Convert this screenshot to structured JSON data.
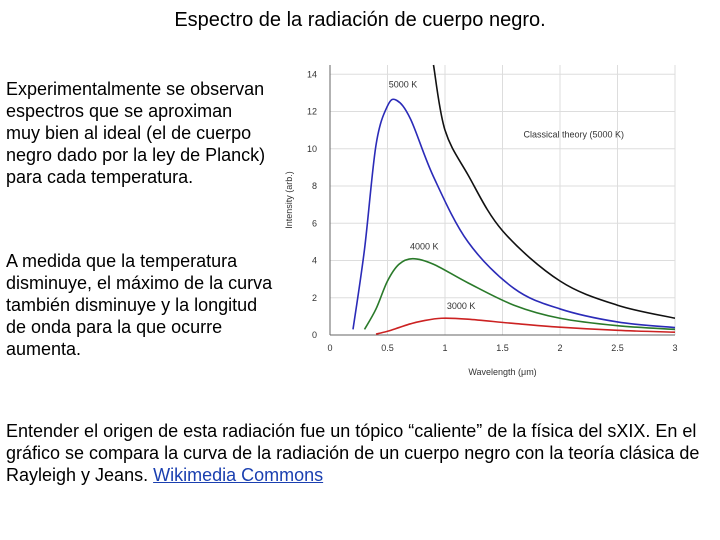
{
  "title": "Espectro de la radiación de cuerpo negro.",
  "paragraph_1": "Experimentalmente se observan espectros que se aproximan muy bien al ideal (el de cuerpo negro dado por la ley de Planck) para cada temperatura.",
  "paragraph_2": "A medida que la temperatura disminuye, el máximo de la curva también disminuye y la longitud de onda para la que ocurre aumenta.",
  "paragraph_3": "Entender el origen de esta radiación fue un tópico “caliente” de la física del sXIX. En el gráfico se compara la curva de la radiación de un cuerpo negro con la teoría clásica de Rayleigh y Jeans.",
  "link_text": "Wikimedia Commons",
  "chart_data": {
    "type": "line",
    "xlabel": "Wavelength (μm)",
    "ylabel": "Intensity (arb.)",
    "xlim": [
      0,
      3
    ],
    "ylim": [
      0,
      14.5
    ],
    "xticks": [
      "0",
      "0.5",
      "1",
      "1.5",
      "2",
      "2.5",
      "3"
    ],
    "yticks": [
      "0",
      "2",
      "4",
      "6",
      "8",
      "10",
      "12",
      "14"
    ],
    "grid": true,
    "series": [
      {
        "name": "5000 K",
        "color": "#2b2bb8",
        "peak_x": 0.58,
        "peak_y": 12.6,
        "x": [
          0.2,
          0.3,
          0.4,
          0.5,
          0.58,
          0.7,
          0.9,
          1.2,
          1.6,
          2.0,
          2.5,
          3.0
        ],
        "y": [
          0.3,
          4.6,
          10.2,
          12.3,
          12.6,
          11.6,
          8.5,
          5.0,
          2.5,
          1.4,
          0.7,
          0.4
        ]
      },
      {
        "name": "4000 K",
        "color": "#2a7a2a",
        "peak_x": 0.72,
        "peak_y": 4.1,
        "x": [
          0.3,
          0.4,
          0.5,
          0.6,
          0.72,
          0.9,
          1.2,
          1.6,
          2.0,
          2.5,
          3.0
        ],
        "y": [
          0.3,
          1.4,
          2.9,
          3.8,
          4.1,
          3.8,
          2.8,
          1.6,
          0.9,
          0.5,
          0.3
        ]
      },
      {
        "name": "3000 K",
        "color": "#cc2222",
        "peak_x": 0.97,
        "peak_y": 0.9,
        "x": [
          0.4,
          0.5,
          0.6,
          0.7,
          0.8,
          0.97,
          1.2,
          1.6,
          2.0,
          2.5,
          3.0
        ],
        "y": [
          0.05,
          0.2,
          0.4,
          0.6,
          0.75,
          0.9,
          0.85,
          0.62,
          0.42,
          0.25,
          0.15
        ]
      },
      {
        "name": "Classical theory (5000 K)",
        "color": "#111111",
        "x": [
          0.9,
          1.0,
          1.2,
          1.5,
          2.0,
          2.5,
          3.0
        ],
        "y": [
          14.5,
          11.0,
          8.6,
          5.6,
          2.9,
          1.6,
          0.9
        ]
      }
    ]
  }
}
